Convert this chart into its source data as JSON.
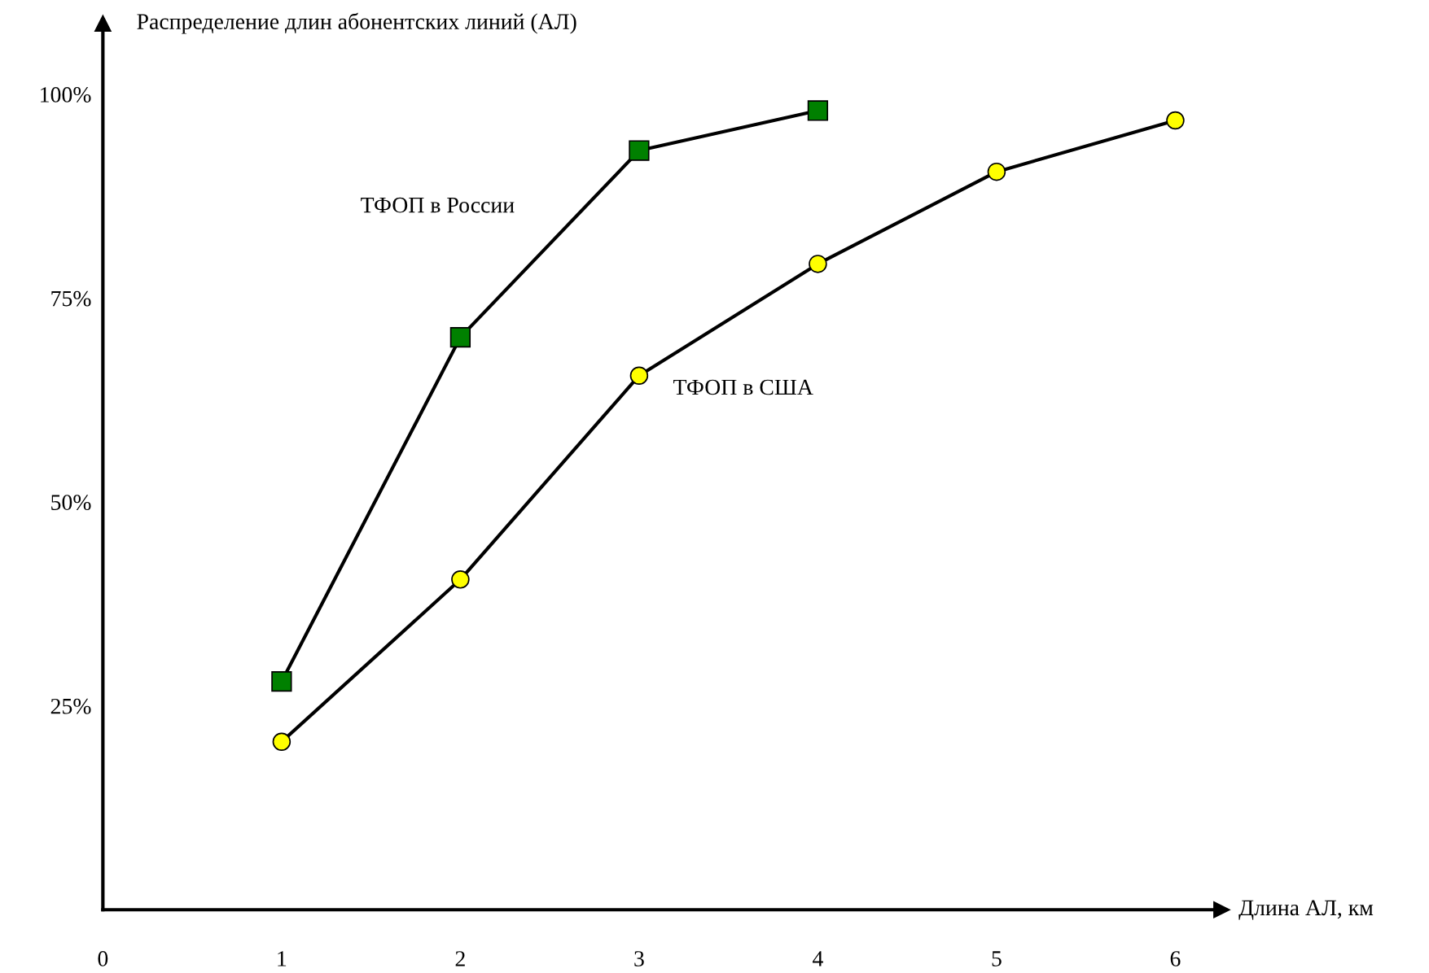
{
  "chart_data": {
    "type": "line",
    "xlabel": "Длина АЛ, км",
    "ylabel": "Распределение длин абонентских линий (АЛ)",
    "xlim": [
      0,
      6.26
    ],
    "ylim": [
      0,
      108.7
    ],
    "xticks": [
      0,
      1,
      2,
      3,
      4,
      5,
      6
    ],
    "yticks": [
      {
        "value": 25,
        "label": "25%"
      },
      {
        "value": 50,
        "label": "50%"
      },
      {
        "value": 75,
        "label": "75%"
      },
      {
        "value": 100,
        "label": "100%"
      }
    ],
    "grid": false,
    "legend": false,
    "line_style": "solid",
    "series": [
      {
        "name": "ТФОП в России",
        "color": "#008000",
        "marker": "square",
        "x": [
          1,
          2,
          3,
          4
        ],
        "values": [
          28.0,
          70.2,
          93.1,
          98.0
        ]
      },
      {
        "name": "ТФОП в США",
        "color": "#ffff00",
        "marker": "circle",
        "x": [
          1,
          2,
          3,
          4,
          5,
          6
        ],
        "values": [
          20.6,
          40.5,
          65.5,
          79.2,
          90.5,
          96.8
        ]
      }
    ]
  }
}
